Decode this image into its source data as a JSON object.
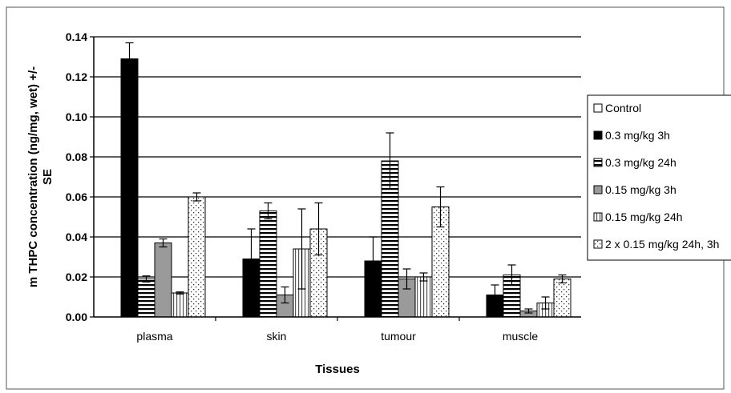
{
  "chart_data": {
    "type": "bar",
    "xlabel": "Tissues",
    "ylabel_line1": "m THPC concentration (ng/mg, wet) +/-",
    "ylabel_line2": "SE",
    "ylim": [
      0,
      0.14
    ],
    "yticks": [
      "0.00",
      "0.02",
      "0.04",
      "0.06",
      "0.08",
      "0.10",
      "0.12",
      "0.14"
    ],
    "grid": true,
    "legend_position": "right",
    "categories": [
      "plasma",
      "skin",
      "tumour",
      "muscle"
    ],
    "series": [
      {
        "name": "Control",
        "pattern": "white",
        "values": [
          0,
          0,
          0,
          0
        ],
        "errors": [
          0,
          0,
          0,
          0
        ]
      },
      {
        "name": "0.3 mg/kg 3h",
        "pattern": "black",
        "values": [
          0.129,
          0.029,
          0.028,
          0.011
        ],
        "errors": [
          0.008,
          0.015,
          0.012,
          0.005
        ]
      },
      {
        "name": "0.3 mg/kg 24h",
        "pattern": "hstripes",
        "values": [
          0.019,
          0.053,
          0.078,
          0.021
        ],
        "errors": [
          0.0015,
          0.004,
          0.014,
          0.005
        ]
      },
      {
        "name": "0.15 mg/kg 3h",
        "pattern": "gray",
        "values": [
          0.037,
          0.011,
          0.019,
          0.003
        ],
        "errors": [
          0.002,
          0.004,
          0.005,
          0.001
        ]
      },
      {
        "name": "0.15 mg/kg 24h",
        "pattern": "vstripes",
        "values": [
          0.012,
          0.034,
          0.02,
          0.007
        ],
        "errors": [
          0.0005,
          0.02,
          0.002,
          0.003
        ]
      },
      {
        "name": "2 x 0.15 mg/kg 24h, 3h",
        "pattern": "dots",
        "values": [
          0.06,
          0.044,
          0.055,
          0.019
        ],
        "errors": [
          0.002,
          0.013,
          0.01,
          0.002
        ]
      }
    ]
  }
}
